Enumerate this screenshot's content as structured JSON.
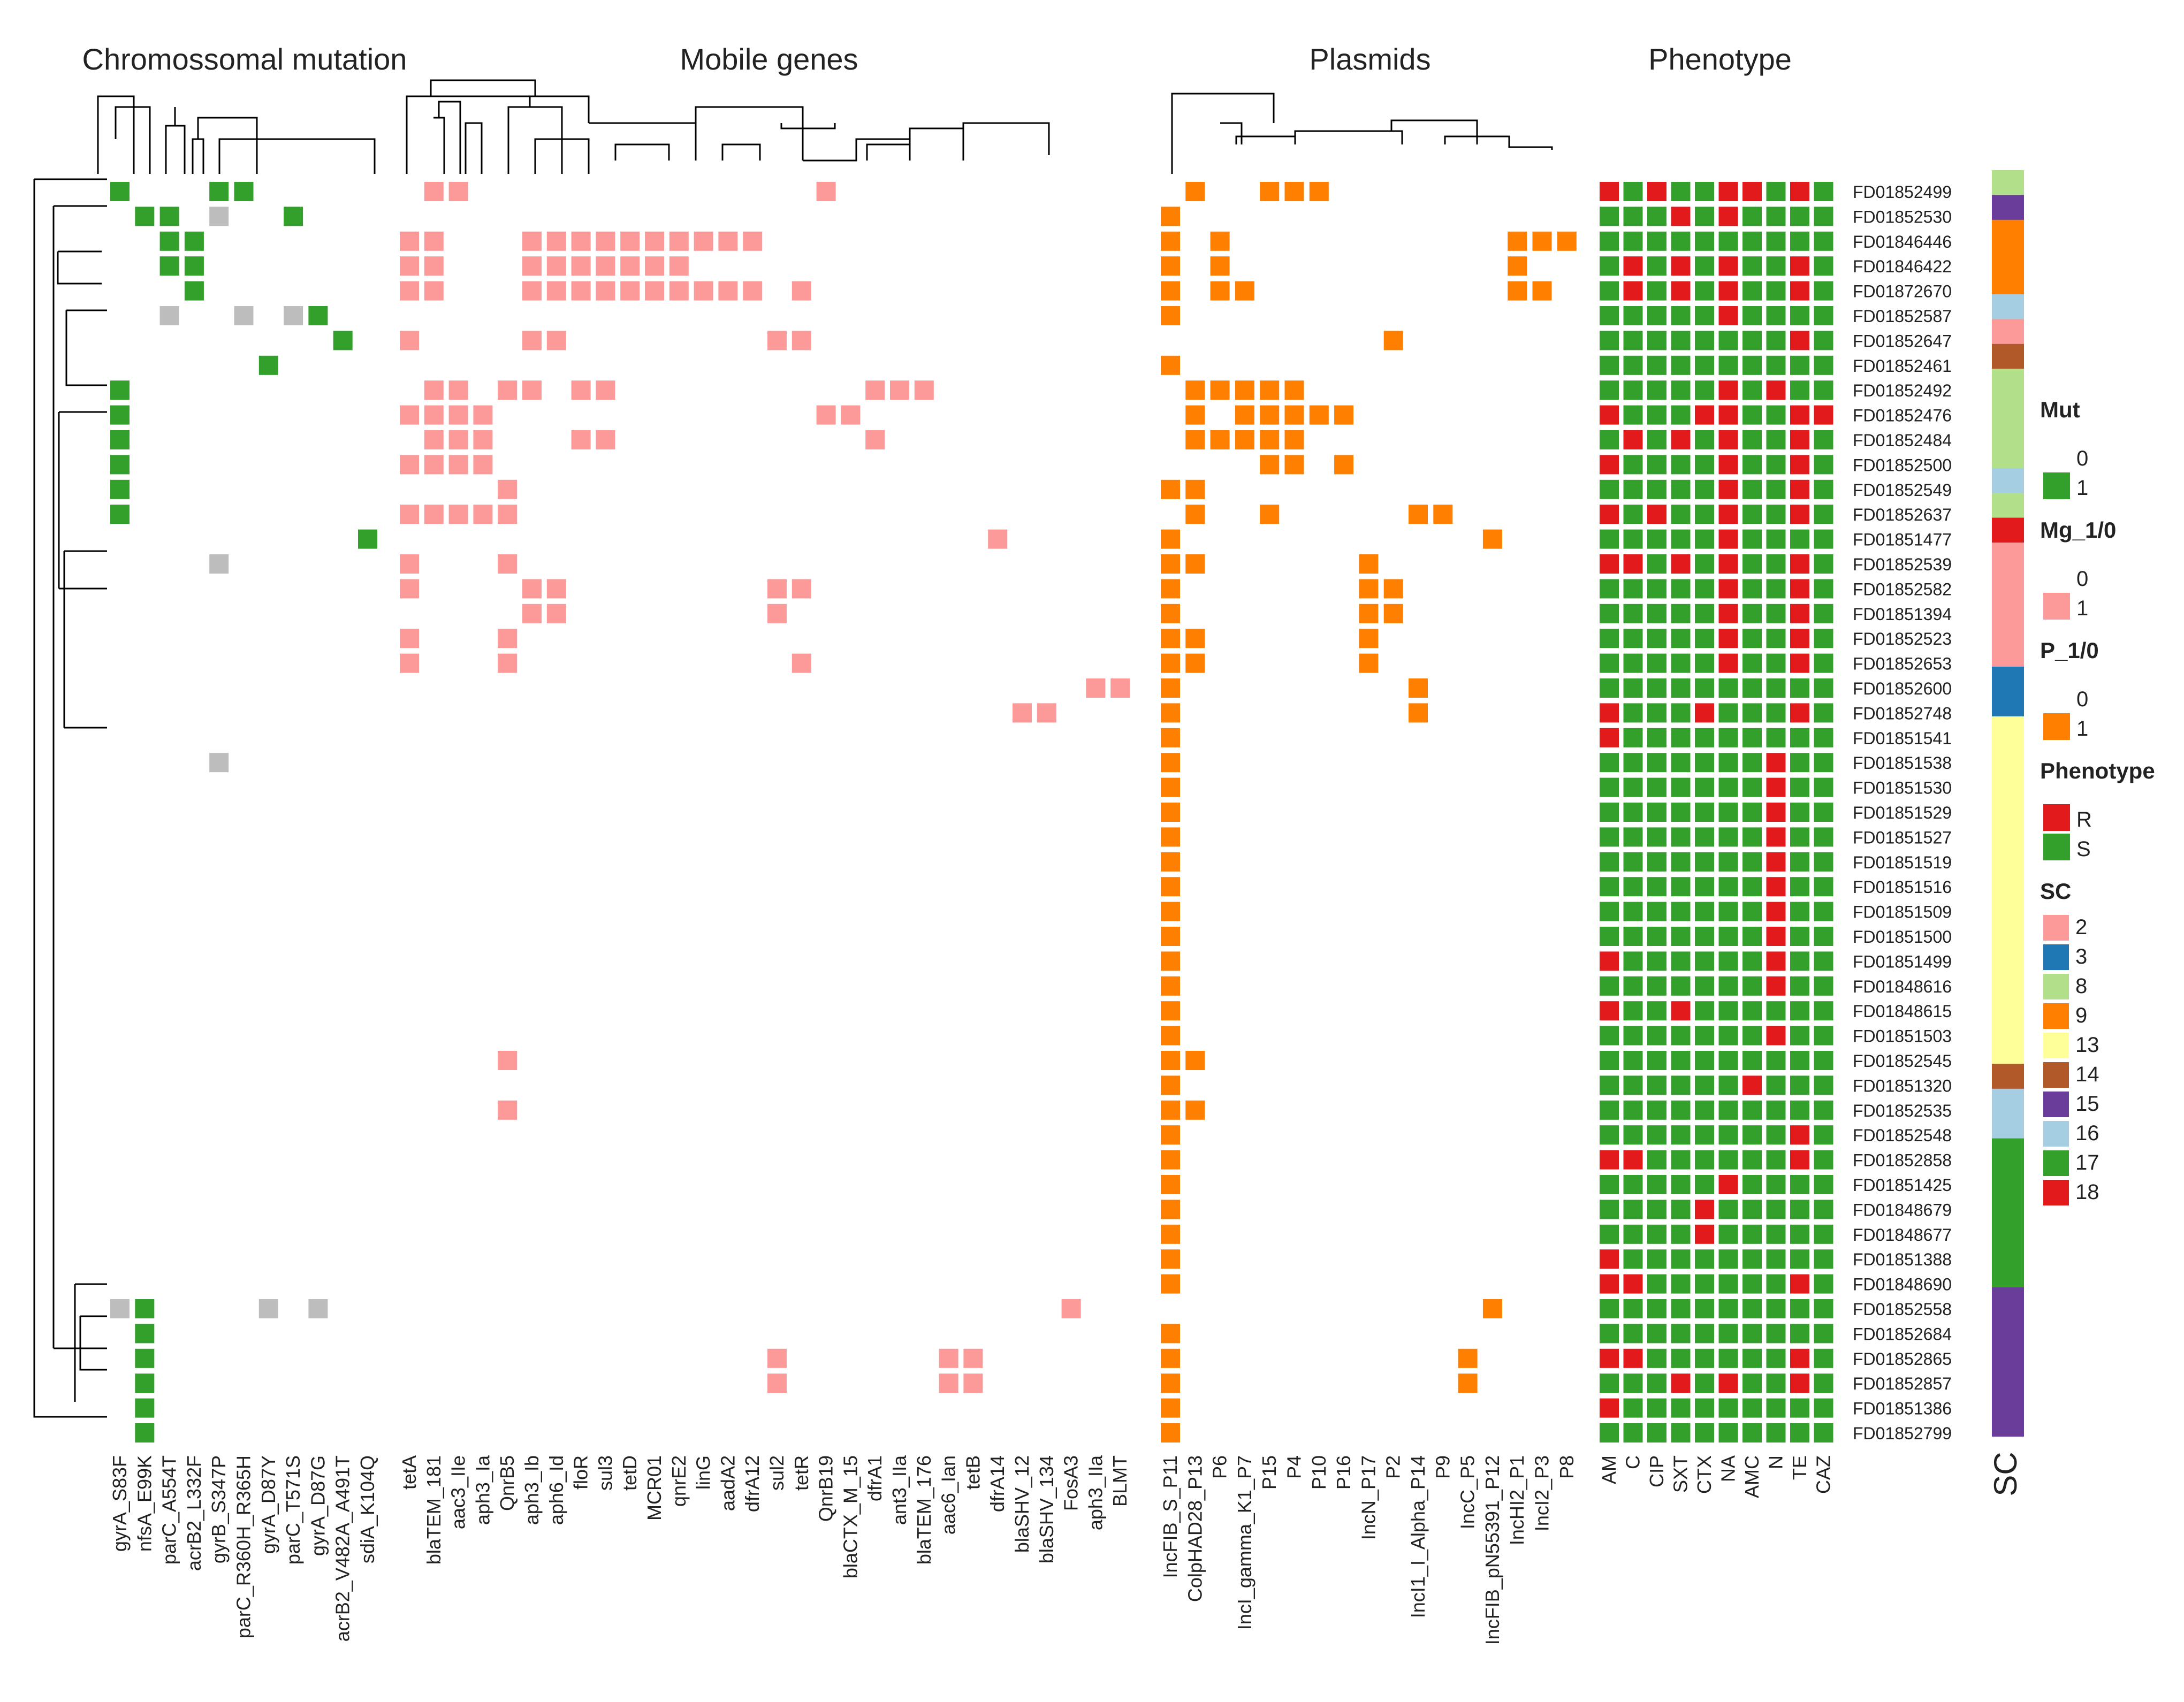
{
  "chart_data": {
    "type": "heatmap",
    "panel_titles": {
      "mutation": "Chromossomal mutation",
      "mobile": "Mobile genes",
      "plasmids": "Plasmids",
      "phenotype": "Phenotype"
    },
    "isolates": [
      "FD01852499",
      "FD01852530",
      "FD01846446",
      "FD01846422",
      "FD01872670",
      "FD01852587",
      "FD01852647",
      "FD01852461",
      "FD01852492",
      "FD01852476",
      "FD01852484",
      "FD01852500",
      "FD01852549",
      "FD01852637",
      "FD01851477",
      "FD01852539",
      "FD01852582",
      "FD01851394",
      "FD01852523",
      "FD01852653",
      "FD01852600",
      "FD01852748",
      "FD01851541",
      "FD01851538",
      "FD01851530",
      "FD01851529",
      "FD01851527",
      "FD01851519",
      "FD01851516",
      "FD01851509",
      "FD01851500",
      "FD01851499",
      "FD01848616",
      "FD01848615",
      "FD01851503",
      "FD01852545",
      "FD01851320",
      "FD01852535",
      "FD01852548",
      "FD01852858",
      "FD01851425",
      "FD01848679",
      "FD01848677",
      "FD01851388",
      "FD01848690",
      "FD01852558",
      "FD01852684",
      "FD01852865",
      "FD01852857",
      "FD01851386",
      "FD01852799"
    ],
    "mutation_columns": [
      "gyrA_S83F",
      "nfsA_E99K",
      "parC_A554T",
      "acrB2_L332F",
      "gyrB_S347P",
      "parC_R360H_R365H",
      "gyrA_D87Y",
      "parC_T571S",
      "gyrA_D87G",
      "acrB2_V482A_A491T",
      "sdiA_K104Q"
    ],
    "mutation_cells": {
      "present_value_1": [
        [
          0,
          0
        ],
        [
          0,
          4
        ],
        [
          0,
          5
        ],
        [
          1,
          1
        ],
        [
          1,
          2
        ],
        [
          1,
          7
        ],
        [
          2,
          2
        ],
        [
          2,
          3
        ],
        [
          3,
          2
        ],
        [
          3,
          3
        ],
        [
          4,
          3
        ],
        [
          5,
          8
        ],
        [
          6,
          9
        ],
        [
          7,
          6
        ],
        [
          8,
          0
        ],
        [
          9,
          0
        ],
        [
          10,
          0
        ],
        [
          11,
          0
        ],
        [
          12,
          0
        ],
        [
          13,
          0
        ],
        [
          14,
          10
        ],
        [
          45,
          1
        ],
        [
          46,
          1
        ],
        [
          47,
          1
        ],
        [
          48,
          1
        ],
        [
          49,
          1
        ],
        [
          50,
          1
        ]
      ],
      "grey_marked": [
        [
          1,
          4
        ],
        [
          5,
          2
        ],
        [
          5,
          5
        ],
        [
          5,
          7
        ],
        [
          15,
          4
        ],
        [
          23,
          4
        ],
        [
          45,
          0
        ],
        [
          45,
          6
        ],
        [
          45,
          8
        ]
      ]
    },
    "mobile_columns": [
      "tetA",
      "blaTEM_181",
      "aac3_IIe",
      "aph3_Ia",
      "QnrB5",
      "aph3_Ib",
      "aph6_Id",
      "floR",
      "sul3",
      "tetD",
      "MCR01",
      "qnrE2",
      "linG",
      "aadA2",
      "dfrA12",
      "sul2",
      "tetR",
      "QnrB19",
      "blaCTX_M_15",
      "dfrA1",
      "ant3_IIa",
      "blaTEM_176",
      "aac6_Ian",
      "tetB",
      "dfrA14",
      "blaSHV_12",
      "blaSHV_134",
      "FosA3",
      "aph3_IIa",
      "BLMT"
    ],
    "mobile_cells": [
      [
        0,
        1
      ],
      [
        0,
        2
      ],
      [
        0,
        17
      ],
      [
        2,
        0
      ],
      [
        2,
        1
      ],
      [
        2,
        5
      ],
      [
        2,
        6
      ],
      [
        2,
        7
      ],
      [
        2,
        8
      ],
      [
        2,
        9
      ],
      [
        2,
        10
      ],
      [
        2,
        11
      ],
      [
        2,
        12
      ],
      [
        2,
        13
      ],
      [
        2,
        14
      ],
      [
        3,
        0
      ],
      [
        3,
        1
      ],
      [
        3,
        5
      ],
      [
        3,
        6
      ],
      [
        3,
        7
      ],
      [
        3,
        8
      ],
      [
        3,
        9
      ],
      [
        3,
        10
      ],
      [
        3,
        11
      ],
      [
        4,
        0
      ],
      [
        4,
        1
      ],
      [
        4,
        5
      ],
      [
        4,
        6
      ],
      [
        4,
        7
      ],
      [
        4,
        8
      ],
      [
        4,
        9
      ],
      [
        4,
        10
      ],
      [
        4,
        11
      ],
      [
        4,
        12
      ],
      [
        4,
        13
      ],
      [
        4,
        14
      ],
      [
        4,
        16
      ],
      [
        6,
        0
      ],
      [
        6,
        5
      ],
      [
        6,
        6
      ],
      [
        6,
        15
      ],
      [
        6,
        16
      ],
      [
        8,
        1
      ],
      [
        8,
        2
      ],
      [
        8,
        4
      ],
      [
        8,
        5
      ],
      [
        8,
        7
      ],
      [
        8,
        8
      ],
      [
        8,
        19
      ],
      [
        8,
        20
      ],
      [
        8,
        21
      ],
      [
        9,
        0
      ],
      [
        9,
        1
      ],
      [
        9,
        2
      ],
      [
        9,
        3
      ],
      [
        9,
        17
      ],
      [
        9,
        18
      ],
      [
        10,
        1
      ],
      [
        10,
        2
      ],
      [
        10,
        3
      ],
      [
        10,
        7
      ],
      [
        10,
        8
      ],
      [
        10,
        19
      ],
      [
        11,
        0
      ],
      [
        11,
        1
      ],
      [
        11,
        2
      ],
      [
        11,
        3
      ],
      [
        12,
        4
      ],
      [
        13,
        0
      ],
      [
        13,
        1
      ],
      [
        13,
        2
      ],
      [
        13,
        3
      ],
      [
        13,
        4
      ],
      [
        14,
        24
      ],
      [
        15,
        0
      ],
      [
        15,
        4
      ],
      [
        16,
        0
      ],
      [
        16,
        5
      ],
      [
        16,
        6
      ],
      [
        16,
        15
      ],
      [
        16,
        16
      ],
      [
        17,
        5
      ],
      [
        17,
        6
      ],
      [
        17,
        15
      ],
      [
        18,
        0
      ],
      [
        18,
        4
      ],
      [
        19,
        0
      ],
      [
        19,
        4
      ],
      [
        19,
        16
      ],
      [
        20,
        28
      ],
      [
        20,
        29
      ],
      [
        21,
        25
      ],
      [
        21,
        26
      ],
      [
        35,
        4
      ],
      [
        37,
        4
      ],
      [
        45,
        27
      ],
      [
        47,
        15
      ],
      [
        47,
        22
      ],
      [
        47,
        23
      ],
      [
        48,
        15
      ],
      [
        48,
        22
      ],
      [
        48,
        23
      ]
    ],
    "plasmid_columns": [
      "IncFIB_S_P11",
      "ColpHAD28_P13",
      "P6",
      "IncI_gamma_K1_P7",
      "P15",
      "P4",
      "P10",
      "P16",
      "IncN_P17",
      "P2",
      "IncI1_I_Alpha_P14",
      "P9",
      "IncC_P5",
      "IncFIB_pN55391_P12",
      "IncHI2_P1",
      "IncI2_P3",
      "P8"
    ],
    "plasmid_cells": [
      [
        0,
        1
      ],
      [
        0,
        4
      ],
      [
        0,
        5
      ],
      [
        0,
        6
      ],
      [
        1,
        0
      ],
      [
        2,
        0
      ],
      [
        2,
        2
      ],
      [
        2,
        14
      ],
      [
        2,
        15
      ],
      [
        2,
        16
      ],
      [
        3,
        0
      ],
      [
        3,
        2
      ],
      [
        3,
        14
      ],
      [
        4,
        0
      ],
      [
        4,
        2
      ],
      [
        4,
        3
      ],
      [
        4,
        14
      ],
      [
        4,
        15
      ],
      [
        5,
        0
      ],
      [
        6,
        9
      ],
      [
        7,
        0
      ],
      [
        8,
        1
      ],
      [
        8,
        2
      ],
      [
        8,
        3
      ],
      [
        8,
        4
      ],
      [
        8,
        5
      ],
      [
        9,
        1
      ],
      [
        9,
        3
      ],
      [
        9,
        4
      ],
      [
        9,
        5
      ],
      [
        9,
        6
      ],
      [
        9,
        7
      ],
      [
        10,
        1
      ],
      [
        10,
        2
      ],
      [
        10,
        3
      ],
      [
        10,
        4
      ],
      [
        10,
        5
      ],
      [
        11,
        4
      ],
      [
        11,
        5
      ],
      [
        11,
        7
      ],
      [
        12,
        0
      ],
      [
        12,
        1
      ],
      [
        13,
        1
      ],
      [
        13,
        4
      ],
      [
        13,
        10
      ],
      [
        13,
        11
      ],
      [
        14,
        0
      ],
      [
        14,
        13
      ],
      [
        15,
        0
      ],
      [
        15,
        1
      ],
      [
        15,
        8
      ],
      [
        16,
        0
      ],
      [
        16,
        8
      ],
      [
        16,
        9
      ],
      [
        17,
        0
      ],
      [
        17,
        8
      ],
      [
        17,
        9
      ],
      [
        18,
        0
      ],
      [
        18,
        1
      ],
      [
        18,
        8
      ],
      [
        19,
        0
      ],
      [
        19,
        1
      ],
      [
        19,
        8
      ],
      [
        20,
        0
      ],
      [
        20,
        10
      ],
      [
        21,
        0
      ],
      [
        21,
        10
      ],
      [
        22,
        0
      ],
      [
        23,
        0
      ],
      [
        24,
        0
      ],
      [
        25,
        0
      ],
      [
        26,
        0
      ],
      [
        27,
        0
      ],
      [
        28,
        0
      ],
      [
        29,
        0
      ],
      [
        30,
        0
      ],
      [
        31,
        0
      ],
      [
        32,
        0
      ],
      [
        33,
        0
      ],
      [
        34,
        0
      ],
      [
        35,
        0
      ],
      [
        35,
        1
      ],
      [
        36,
        0
      ],
      [
        37,
        0
      ],
      [
        37,
        1
      ],
      [
        38,
        0
      ],
      [
        39,
        0
      ],
      [
        40,
        0
      ],
      [
        41,
        0
      ],
      [
        42,
        0
      ],
      [
        43,
        0
      ],
      [
        44,
        0
      ],
      [
        45,
        13
      ],
      [
        46,
        0
      ],
      [
        47,
        0
      ],
      [
        47,
        12
      ],
      [
        48,
        0
      ],
      [
        48,
        12
      ],
      [
        49,
        0
      ],
      [
        50,
        0
      ]
    ],
    "phenotype_columns": [
      "AM",
      "C",
      "CIP",
      "SXT",
      "CTX",
      "NA",
      "AMC",
      "N",
      "TE",
      "CAZ"
    ],
    "phenotype_resistant_cells": [
      [
        0,
        0
      ],
      [
        0,
        2
      ],
      [
        0,
        5
      ],
      [
        0,
        6
      ],
      [
        0,
        8
      ],
      [
        1,
        3
      ],
      [
        1,
        5
      ],
      [
        3,
        1
      ],
      [
        3,
        3
      ],
      [
        3,
        5
      ],
      [
        3,
        8
      ],
      [
        4,
        1
      ],
      [
        4,
        3
      ],
      [
        4,
        5
      ],
      [
        4,
        8
      ],
      [
        5,
        5
      ],
      [
        6,
        8
      ],
      [
        8,
        5
      ],
      [
        8,
        7
      ],
      [
        9,
        0
      ],
      [
        9,
        4
      ],
      [
        9,
        5
      ],
      [
        9,
        8
      ],
      [
        9,
        9
      ],
      [
        10,
        1
      ],
      [
        10,
        3
      ],
      [
        10,
        5
      ],
      [
        10,
        8
      ],
      [
        11,
        0
      ],
      [
        11,
        5
      ],
      [
        11,
        8
      ],
      [
        12,
        5
      ],
      [
        12,
        8
      ],
      [
        13,
        0
      ],
      [
        13,
        2
      ],
      [
        13,
        5
      ],
      [
        13,
        8
      ],
      [
        14,
        5
      ],
      [
        15,
        0
      ],
      [
        15,
        1
      ],
      [
        15,
        3
      ],
      [
        15,
        5
      ],
      [
        15,
        8
      ],
      [
        16,
        5
      ],
      [
        16,
        8
      ],
      [
        17,
        5
      ],
      [
        17,
        8
      ],
      [
        18,
        5
      ],
      [
        18,
        8
      ],
      [
        19,
        5
      ],
      [
        19,
        8
      ],
      [
        21,
        0
      ],
      [
        21,
        4
      ],
      [
        21,
        8
      ],
      [
        22,
        0
      ],
      [
        23,
        7
      ],
      [
        24,
        7
      ],
      [
        25,
        7
      ],
      [
        26,
        7
      ],
      [
        27,
        7
      ],
      [
        28,
        7
      ],
      [
        29,
        7
      ],
      [
        30,
        7
      ],
      [
        31,
        0
      ],
      [
        31,
        7
      ],
      [
        32,
        7
      ],
      [
        33,
        0
      ],
      [
        33,
        3
      ],
      [
        34,
        7
      ],
      [
        36,
        6
      ],
      [
        38,
        8
      ],
      [
        39,
        0
      ],
      [
        39,
        1
      ],
      [
        39,
        8
      ],
      [
        40,
        5
      ],
      [
        41,
        4
      ],
      [
        42,
        4
      ],
      [
        43,
        0
      ],
      [
        44,
        0
      ],
      [
        44,
        1
      ],
      [
        44,
        8
      ],
      [
        47,
        0
      ],
      [
        47,
        1
      ],
      [
        47,
        8
      ],
      [
        48,
        3
      ],
      [
        48,
        5
      ],
      [
        48,
        8
      ],
      [
        49,
        0
      ]
    ],
    "sc_column_label": "SC",
    "sc_values": [
      8,
      15,
      9,
      9,
      9,
      16,
      2,
      14,
      8,
      8,
      8,
      8,
      16,
      8,
      18,
      2,
      2,
      2,
      2,
      2,
      3,
      3,
      13,
      13,
      13,
      13,
      13,
      13,
      13,
      13,
      13,
      13,
      13,
      13,
      13,
      13,
      14,
      16,
      16,
      17,
      17,
      17,
      17,
      17,
      17,
      15,
      15,
      15,
      15,
      15,
      15
    ],
    "legend": [
      {
        "title": "Mut",
        "items": [
          {
            "label": "0",
            "color": "#ffffff"
          },
          {
            "label": "1",
            "color": "#33a02c"
          }
        ]
      },
      {
        "title": "Mg_1/0",
        "items": [
          {
            "label": "0",
            "color": "#ffffff"
          },
          {
            "label": "1",
            "color": "#fb9a99"
          }
        ]
      },
      {
        "title": "P_1/0",
        "items": [
          {
            "label": "0",
            "color": "#ffffff"
          },
          {
            "label": "1",
            "color": "#ff7f00"
          }
        ]
      },
      {
        "title": "Phenotype",
        "items": [
          {
            "label": "R",
            "color": "#e31a1c"
          },
          {
            "label": "S",
            "color": "#33a02c"
          }
        ]
      },
      {
        "title": "SC",
        "items": [
          {
            "label": "2",
            "color": "#fb9a99"
          },
          {
            "label": "3",
            "color": "#1f78b4"
          },
          {
            "label": "8",
            "color": "#b2df8a"
          },
          {
            "label": "9",
            "color": "#ff7f00"
          },
          {
            "label": "13",
            "color": "#ffff99"
          },
          {
            "label": "14",
            "color": "#b15928"
          },
          {
            "label": "15",
            "color": "#6a3d9a"
          },
          {
            "label": "16",
            "color": "#a6cee3"
          },
          {
            "label": "17",
            "color": "#33a02c"
          },
          {
            "label": "18",
            "color": "#e31a1c"
          }
        ]
      }
    ],
    "colors": {
      "mutation": "#33a02c",
      "mutation_grey": "#bdbdbd",
      "mobile": "#fb9a99",
      "plasmid": "#ff7f00",
      "resistant": "#e31a1c",
      "susceptible": "#33a02c"
    }
  }
}
